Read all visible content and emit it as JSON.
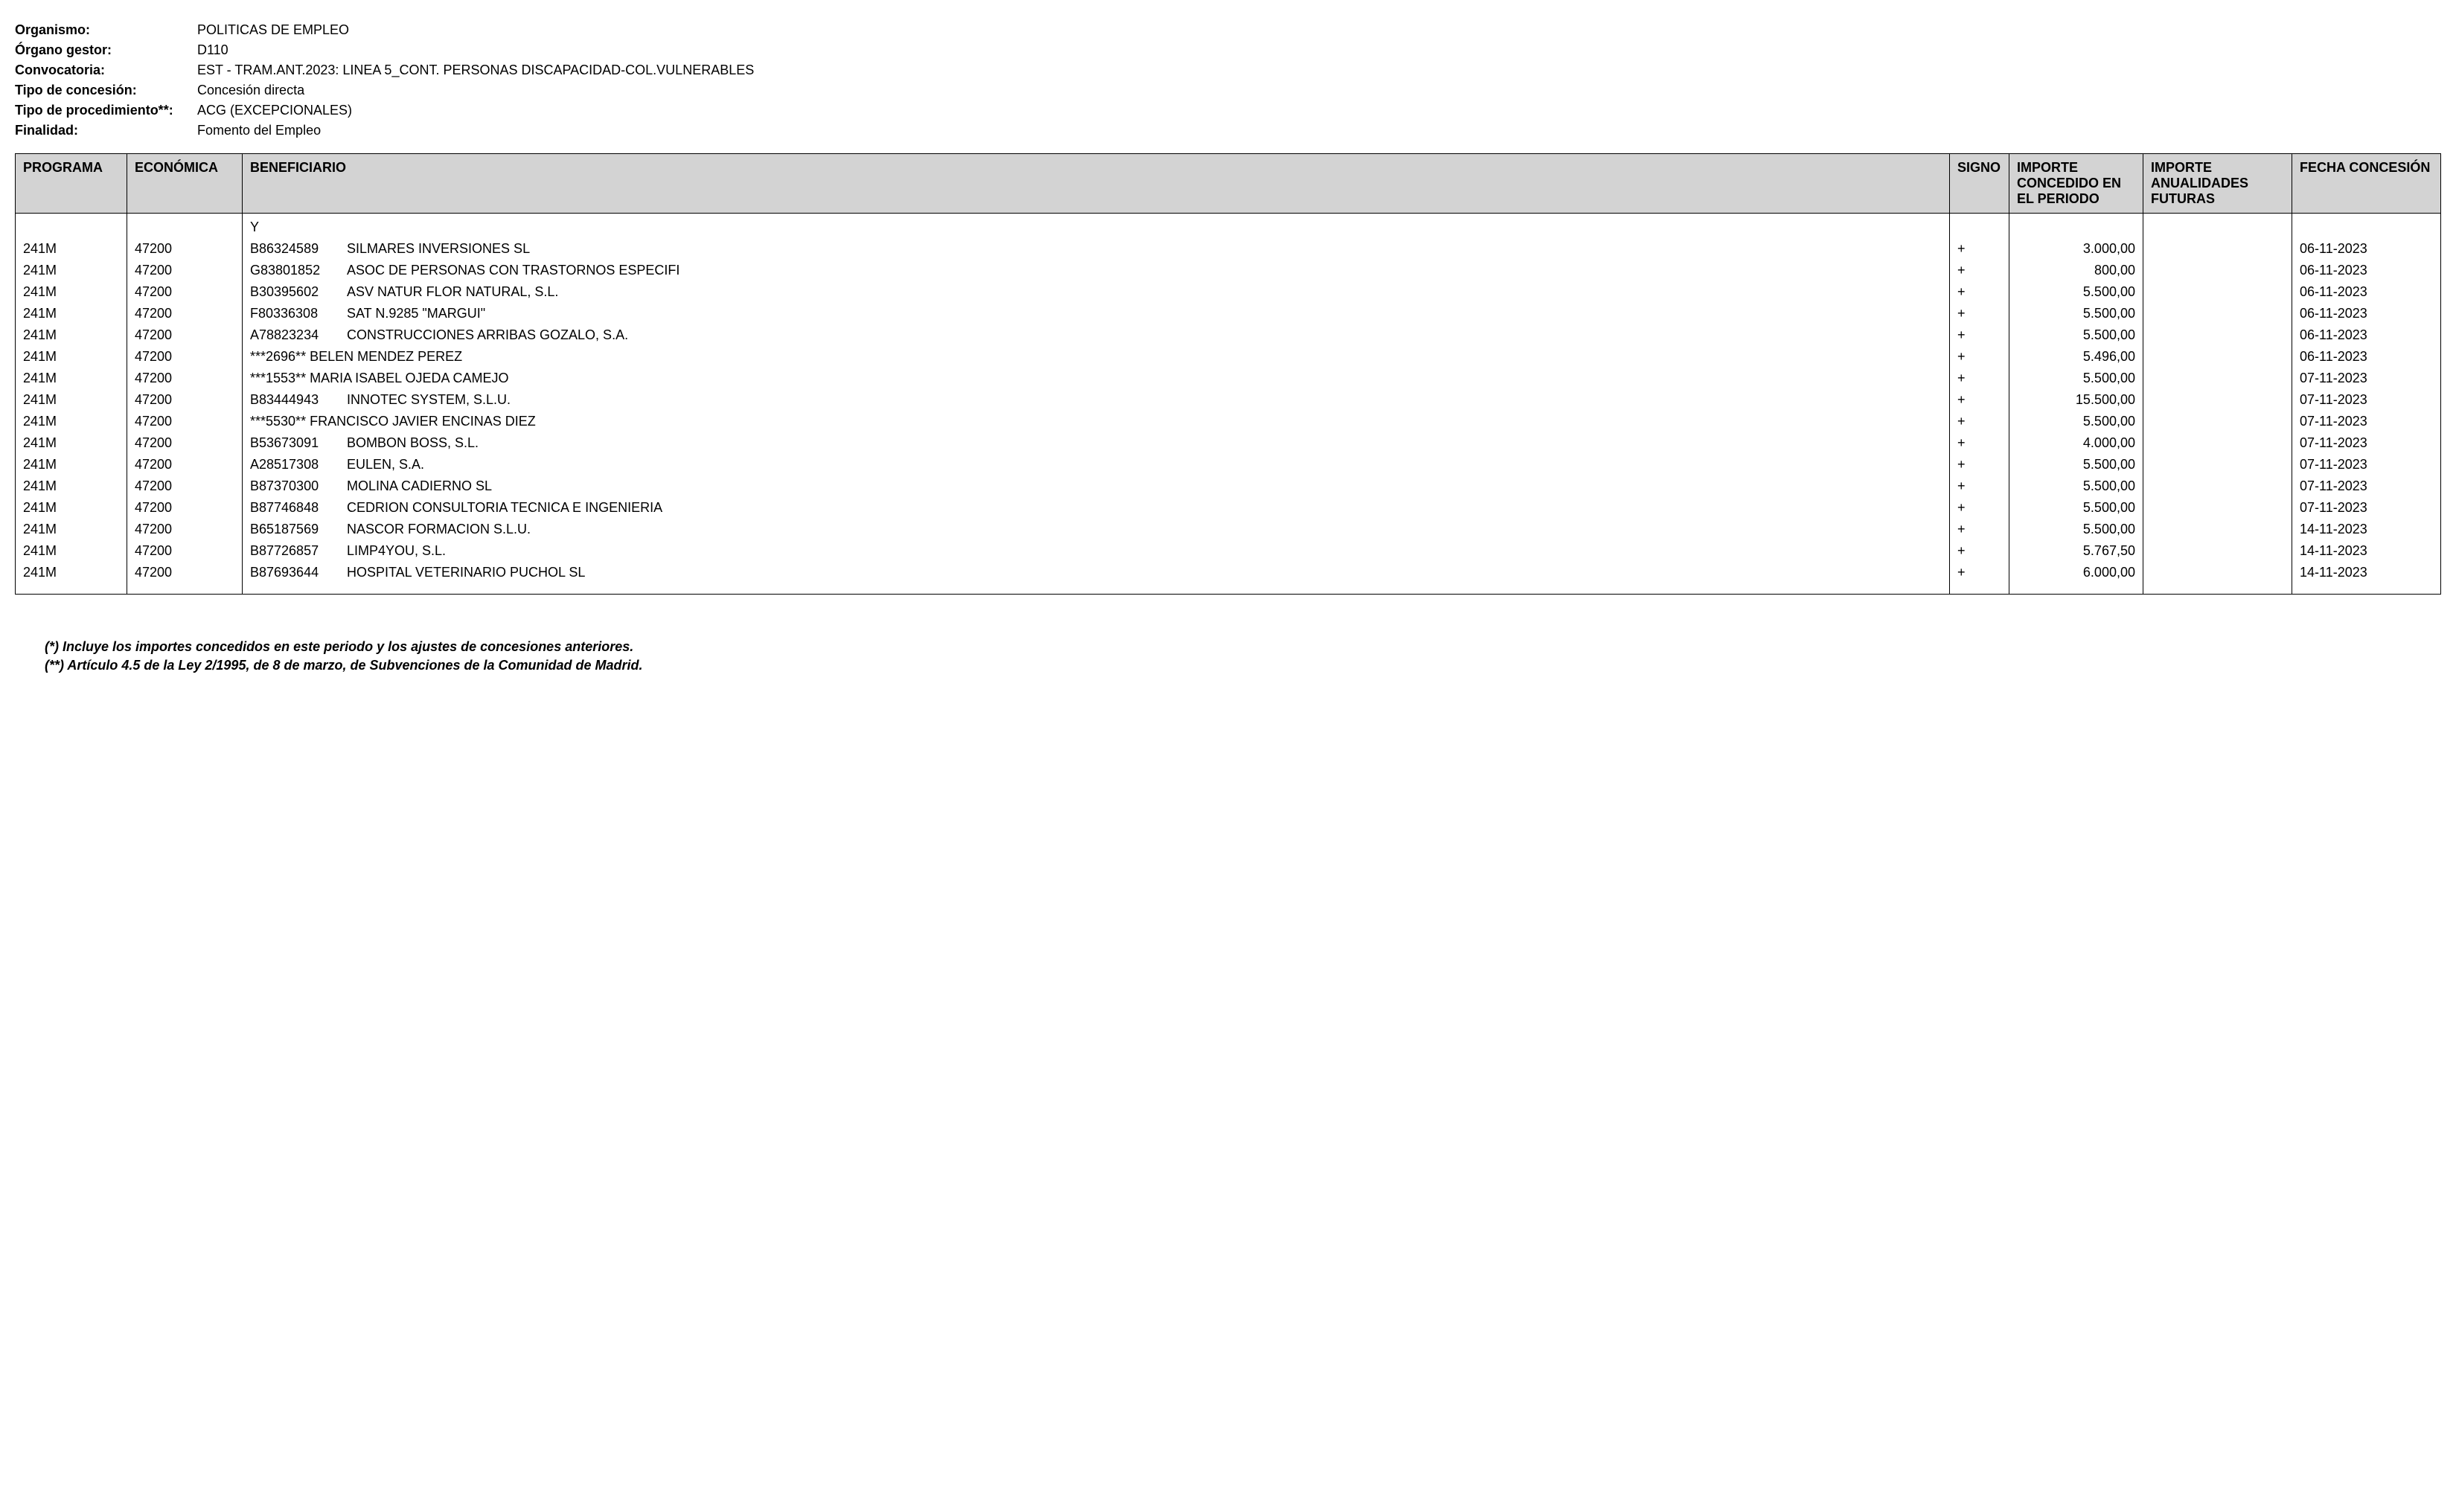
{
  "header": {
    "fields": [
      {
        "label": "Organismo:",
        "value": "POLITICAS DE EMPLEO"
      },
      {
        "label": "Órgano gestor:",
        "value": "D110"
      },
      {
        "label": "Convocatoria:",
        "value": "EST - TRAM.ANT.2023: LINEA 5_CONT. PERSONAS DISCAPACIDAD-COL.VULNERABLES"
      },
      {
        "label": "Tipo de concesión:",
        "value": "Concesión directa"
      },
      {
        "label": "Tipo de procedimiento**:",
        "value": "ACG (EXCEPCIONALES)"
      },
      {
        "label": "Finalidad:",
        "value": "Fomento del Empleo"
      }
    ]
  },
  "table": {
    "columns": [
      "PROGRAMA",
      "ECONÓMICA",
      "BENEFICIARIO",
      "SIGNO",
      "IMPORTE CONCEDIDO EN EL PERIODO",
      "IMPORTE ANUALIDADES FUTURAS",
      "FECHA CONCESIÓN"
    ],
    "rows": [
      {
        "programa": "",
        "economica": "",
        "beneficiario_id": "",
        "beneficiario_name": "Y",
        "signo": "",
        "importe_periodo": "",
        "importe_futuras": "",
        "fecha": ""
      },
      {
        "programa": "241M",
        "economica": "47200",
        "beneficiario_id": "B86324589",
        "beneficiario_name": "SILMARES INVERSIONES SL",
        "signo": "+",
        "importe_periodo": "3.000,00",
        "importe_futuras": "",
        "fecha": "06-11-2023"
      },
      {
        "programa": "241M",
        "economica": "47200",
        "beneficiario_id": "G83801852",
        "beneficiario_name": "ASOC DE PERSONAS CON TRASTORNOS ESPECIFI",
        "signo": "+",
        "importe_periodo": "800,00",
        "importe_futuras": "",
        "fecha": "06-11-2023",
        "multiline": true
      },
      {
        "programa": "241M",
        "economica": "47200",
        "beneficiario_id": "B30395602",
        "beneficiario_name": "ASV NATUR FLOR NATURAL, S.L.",
        "signo": "+",
        "importe_periodo": "5.500,00",
        "importe_futuras": "",
        "fecha": "06-11-2023"
      },
      {
        "programa": "241M",
        "economica": "47200",
        "beneficiario_id": "F80336308",
        "beneficiario_name": "SAT N.9285 \"MARGUI\"",
        "signo": "+",
        "importe_periodo": "5.500,00",
        "importe_futuras": "",
        "fecha": "06-11-2023"
      },
      {
        "programa": "241M",
        "economica": "47200",
        "beneficiario_id": "A78823234",
        "beneficiario_name": "CONSTRUCCIONES ARRIBAS GOZALO, S.A.",
        "signo": "+",
        "importe_periodo": "5.500,00",
        "importe_futuras": "",
        "fecha": "06-11-2023"
      },
      {
        "programa": "241M",
        "economica": "47200",
        "beneficiario_id": "***2696**",
        "beneficiario_name": "BELEN MENDEZ PEREZ",
        "signo": "+",
        "importe_periodo": "5.496,00",
        "importe_futuras": "",
        "fecha": "06-11-2023",
        "nospace": true
      },
      {
        "programa": "241M",
        "economica": "47200",
        "beneficiario_id": "***1553**",
        "beneficiario_name": "MARIA ISABEL OJEDA CAMEJO",
        "signo": "+",
        "importe_periodo": "5.500,00",
        "importe_futuras": "",
        "fecha": "07-11-2023",
        "nospace": true
      },
      {
        "programa": "241M",
        "economica": "47200",
        "beneficiario_id": "B83444943",
        "beneficiario_name": "INNOTEC SYSTEM, S.L.U.",
        "signo": "+",
        "importe_periodo": "15.500,00",
        "importe_futuras": "",
        "fecha": "07-11-2023"
      },
      {
        "programa": "241M",
        "economica": "47200",
        "beneficiario_id": "***5530**",
        "beneficiario_name": "FRANCISCO JAVIER ENCINAS DIEZ",
        "signo": "+",
        "importe_periodo": "5.500,00",
        "importe_futuras": "",
        "fecha": "07-11-2023",
        "nospace": true
      },
      {
        "programa": "241M",
        "economica": "47200",
        "beneficiario_id": "B53673091",
        "beneficiario_name": "BOMBON BOSS, S.L.",
        "signo": "+",
        "importe_periodo": "4.000,00",
        "importe_futuras": "",
        "fecha": "07-11-2023"
      },
      {
        "programa": "241M",
        "economica": "47200",
        "beneficiario_id": "A28517308",
        "beneficiario_name": "EULEN, S.A.",
        "signo": "+",
        "importe_periodo": "5.500,00",
        "importe_futuras": "",
        "fecha": "07-11-2023"
      },
      {
        "programa": "241M",
        "economica": "47200",
        "beneficiario_id": "B87370300",
        "beneficiario_name": "MOLINA CADIERNO SL",
        "signo": "+",
        "importe_periodo": "5.500,00",
        "importe_futuras": "",
        "fecha": "07-11-2023"
      },
      {
        "programa": "241M",
        "economica": "47200",
        "beneficiario_id": "B87746848",
        "beneficiario_name": "CEDRION CONSULTORIA TECNICA E INGENIERIA",
        "signo": "+",
        "importe_periodo": "5.500,00",
        "importe_futuras": "",
        "fecha": "07-11-2023",
        "multiline": true
      },
      {
        "programa": "241M",
        "economica": "47200",
        "beneficiario_id": "B65187569",
        "beneficiario_name": "NASCOR FORMACION S.L.U.",
        "signo": "+",
        "importe_periodo": "5.500,00",
        "importe_futuras": "",
        "fecha": "14-11-2023"
      },
      {
        "programa": "241M",
        "economica": "47200",
        "beneficiario_id": "B87726857",
        "beneficiario_name": "LIMP4YOU, S.L.",
        "signo": "+",
        "importe_periodo": "5.767,50",
        "importe_futuras": "",
        "fecha": "14-11-2023"
      },
      {
        "programa": "241M",
        "economica": "47200",
        "beneficiario_id": "B87693644",
        "beneficiario_name": "HOSPITAL VETERINARIO PUCHOL SL",
        "signo": "+",
        "importe_periodo": "6.000,00",
        "importe_futuras": "",
        "fecha": "14-11-2023"
      }
    ]
  },
  "footnotes": [
    "(*) Incluye los importes concedidos en este periodo y los ajustes de concesiones anteriores.",
    "(**) Artículo 4.5 de la Ley 2/1995, de 8 de marzo, de Subvenciones de la Comunidad de Madrid."
  ],
  "styling": {
    "background_color": "#ffffff",
    "text_color": "#000000",
    "header_bg_color": "#d3d3d3",
    "border_color": "#000000",
    "font_family": "Arial, Helvetica, sans-serif",
    "base_font_size": 18
  }
}
